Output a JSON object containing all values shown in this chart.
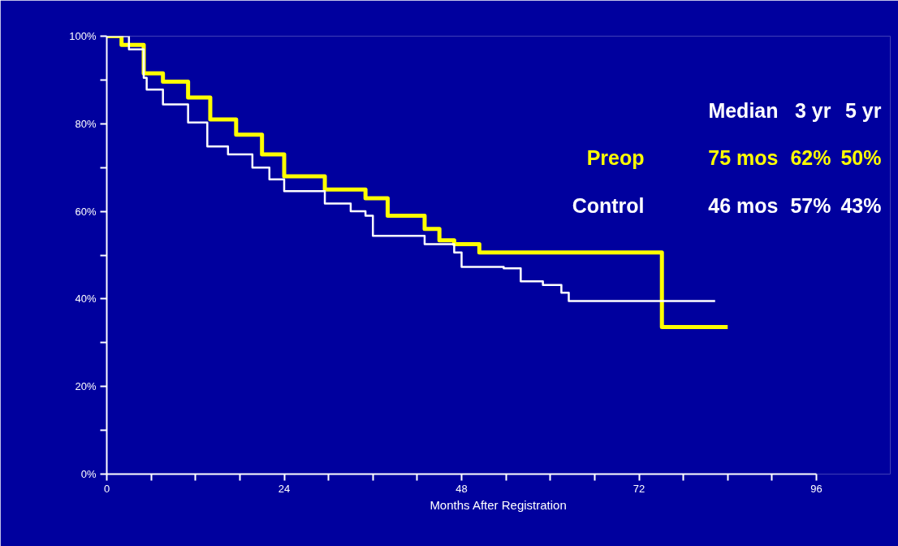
{
  "chart_data": {
    "type": "step",
    "xlabel": "Months After Registration",
    "xlim": [
      0,
      96
    ],
    "ylim": [
      0,
      100
    ],
    "xticks": [
      0,
      {
        "value": 6,
        "label": null
      },
      {
        "value": 12,
        "label": null
      },
      {
        "value": 18,
        "label": null
      },
      24,
      {
        "value": 30,
        "label": null
      },
      {
        "value": 36,
        "label": null
      },
      {
        "value": 42,
        "label": null
      },
      48,
      {
        "value": 54,
        "label": null
      },
      {
        "value": 60,
        "label": null
      },
      {
        "value": 66,
        "label": null
      },
      72,
      {
        "value": 78,
        "label": null
      },
      {
        "value": 84,
        "label": null
      },
      {
        "value": 90,
        "label": null
      },
      96
    ],
    "yticks": [
      {
        "value": 0,
        "label": "0%"
      },
      {
        "value": 10,
        "label": null
      },
      {
        "value": 20,
        "label": "20%"
      },
      {
        "value": 30,
        "label": null
      },
      {
        "value": 40,
        "label": "40%"
      },
      {
        "value": 50,
        "label": null
      },
      {
        "value": 60,
        "label": "60%"
      },
      {
        "value": 70,
        "label": null
      },
      {
        "value": 80,
        "label": "80%"
      },
      {
        "value": 90,
        "label": null
      },
      {
        "value": 100,
        "label": "100%"
      }
    ],
    "grid": false,
    "marker": "none",
    "line_style": "solid",
    "annotations": [
      "Median",
      "3 yr",
      "5 yr",
      "75 mos",
      "62%",
      "50%",
      "46 mos",
      "57%",
      "43%"
    ],
    "series": [
      {
        "name": "Preop",
        "color": "#ffff00",
        "x": [
          0,
          2,
          5,
          7.6,
          11,
          14,
          17.5,
          21,
          24,
          29.5,
          35,
          38,
          43,
          45,
          47,
          50.4,
          75.1,
          84
        ],
        "values": [
          100,
          98,
          91.5,
          89.6,
          86,
          81,
          77.5,
          73,
          68,
          65,
          63,
          59,
          56,
          53.4,
          52.5,
          50.6,
          33.6,
          33.6
        ]
      },
      {
        "name": "Control",
        "color": "#ffffff",
        "x": [
          0,
          3,
          5,
          5.4,
          7.6,
          11,
          13.6,
          16.4,
          19.7,
          22,
          24,
          29.5,
          33,
          35,
          36,
          43,
          47,
          48,
          53.7,
          56,
          59,
          61.5,
          62.5,
          82.3
        ],
        "values": [
          100,
          97,
          90.5,
          87.8,
          84.4,
          80.3,
          74.8,
          73,
          70,
          67.3,
          64.6,
          61.8,
          60,
          59,
          54.4,
          52.5,
          50.6,
          47.3,
          47,
          44,
          43.2,
          41.4,
          39.5,
          39.5
        ]
      }
    ]
  }
}
